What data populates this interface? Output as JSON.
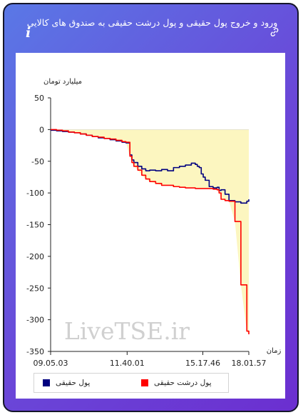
{
  "header": {
    "title": "ورود و خروج پول حقیقی و پول درشت حقیقی به صندوق های کالایی"
  },
  "icons": {
    "info": "info-icon",
    "link": "link-icon",
    "info_glyph": "i"
  },
  "colors": {
    "background_gradient": [
      "#5a78e6",
      "#6b2fd0"
    ],
    "series_real_money": "#00007f",
    "series_big_money": "#ff0000",
    "area_fill": "#fcf6c0"
  },
  "watermark": "LiveTSE.ir",
  "chart_data": {
    "type": "line",
    "ylabel": "میلیارد تومان",
    "xlabel": "زمان",
    "ylim": [
      -350,
      50
    ],
    "yticks": [
      50,
      0,
      -50,
      -100,
      -150,
      -200,
      -250,
      -300,
      -350
    ],
    "xticks": [
      "09.05.03",
      "11.40.01",
      "15.17.46",
      "18.01.57"
    ],
    "grid": false,
    "legend_placement": "bottom",
    "x": [
      0,
      3,
      6,
      9,
      12,
      15,
      18,
      21,
      24,
      27,
      30,
      33,
      36,
      38,
      40,
      41,
      42,
      44,
      46,
      48,
      50,
      53,
      56,
      59,
      62,
      65,
      68,
      71,
      72,
      73,
      74,
      75,
      76,
      77,
      78,
      80,
      82,
      84,
      85,
      86,
      88,
      90,
      93,
      96,
      99,
      100
    ],
    "series": [
      {
        "name": "پول حقیقی",
        "values": [
          -1,
          -2,
          -3,
          -4,
          -5,
          -7,
          -9,
          -11,
          -13,
          -14,
          -16,
          -18,
          -20,
          -21,
          -40,
          -48,
          -52,
          -58,
          -62,
          -65,
          -64,
          -65,
          -63,
          -65,
          -60,
          -58,
          -56,
          -53,
          -53,
          -55,
          -58,
          -60,
          -70,
          -75,
          -80,
          -90,
          -92,
          -91,
          -96,
          -95,
          -102,
          -112,
          -114,
          -116,
          -113,
          -110
        ]
      },
      {
        "name": "پول درشت حقیقی",
        "values": [
          0,
          -1,
          -2,
          -4,
          -5,
          -7,
          -9,
          -11,
          -12,
          -14,
          -15,
          -17,
          -19,
          -20,
          -42,
          -52,
          -58,
          -64,
          -72,
          -78,
          -82,
          -85,
          -88,
          -88,
          -90,
          -91,
          -92,
          -92,
          -92,
          -93,
          -93,
          -93,
          -93,
          -93,
          -93,
          -93,
          -94,
          -95,
          -100,
          -110,
          -112,
          -113,
          -145,
          -245,
          -318,
          -323
        ]
      }
    ]
  }
}
